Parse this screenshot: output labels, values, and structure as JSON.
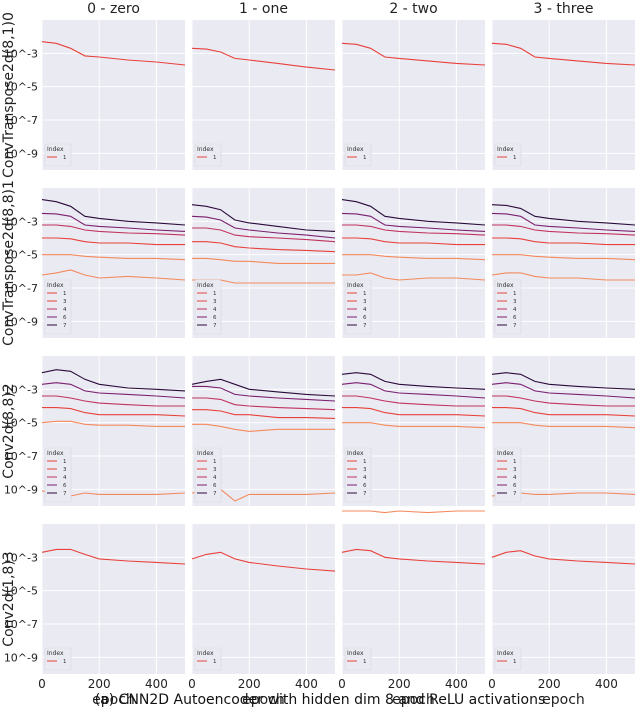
{
  "caption": "(a) CNN2D Autoencoder with hidden dim 8 and ReLU activations",
  "columns": [
    "0 - zero",
    "1 - one",
    "2 - two",
    "3 - three"
  ],
  "colors": {
    "panel_bg": "#eaeaf2",
    "grid": "#ffffff",
    "index_1": "#e8413b",
    "index_3": "#e8413b",
    "index_4": "#c0325f",
    "index_6": "#7a1e6e",
    "index_7": "#2a0a3a",
    "index_low": "#f4895c"
  },
  "chart_data": {
    "type": "line",
    "grid": true,
    "yscale": "log",
    "xlabel": "epoch",
    "xticks": [
      0,
      200,
      400
    ],
    "xlim": [
      0,
      500
    ],
    "ylim": [
      1e-10,
      0.1
    ],
    "yticks": [
      "10^-3",
      "10^-5",
      "10^-7",
      "10^-9"
    ],
    "legend_title": "Index",
    "legend_location": "lower-left",
    "rows": [
      {
        "ylabel": "ConvTranspose2d(8,1)0",
        "legend_entries": [
          "1"
        ],
        "series": [
          {
            "name": "1",
            "color": "index_1",
            "x": [
              0,
              50,
              100,
              150,
              200,
              300,
              400,
              500
            ],
            "y_by_column": [
              [
                0.005,
                0.004,
                0.002,
                0.0007,
                0.0006,
                0.0004,
                0.0003,
                0.0002
              ],
              [
                0.002,
                0.0018,
                0.0012,
                0.0005,
                0.0004,
                0.00025,
                0.00015,
                0.0001
              ],
              [
                0.004,
                0.0035,
                0.002,
                0.0006,
                0.0005,
                0.00035,
                0.00025,
                0.0002
              ],
              [
                0.004,
                0.0035,
                0.002,
                0.0006,
                0.0005,
                0.00035,
                0.00025,
                0.0002
              ]
            ]
          }
        ]
      },
      {
        "ylabel": "ConvTranspose2d(8,8)1",
        "legend_entries": [
          "1",
          "3",
          "4",
          "6",
          "7"
        ],
        "series": [
          {
            "name": "7",
            "color": "index_7",
            "x": [
              0,
              50,
              100,
              150,
              200,
              300,
              400,
              500
            ],
            "y_by_column": [
              [
                0.02,
                0.015,
                0.008,
                0.002,
                0.0015,
                0.001,
                0.0008,
                0.0006
              ],
              [
                0.01,
                0.008,
                0.005,
                0.0012,
                0.0008,
                0.0005,
                0.0003,
                0.00025
              ],
              [
                0.02,
                0.015,
                0.008,
                0.002,
                0.0015,
                0.001,
                0.0008,
                0.0006
              ],
              [
                0.01,
                0.009,
                0.006,
                0.002,
                0.0015,
                0.001,
                0.0008,
                0.0006
              ]
            ]
          },
          {
            "name": "6",
            "color": "index_6",
            "x": [
              0,
              50,
              100,
              150,
              200,
              300,
              400,
              500
            ],
            "y_by_column": [
              [
                0.003,
                0.0028,
                0.002,
                0.0006,
                0.0005,
                0.0004,
                0.0003,
                0.00025
              ],
              [
                0.002,
                0.0018,
                0.0012,
                0.0004,
                0.0003,
                0.0002,
                0.00015,
                0.0001
              ],
              [
                0.003,
                0.0028,
                0.002,
                0.0006,
                0.0005,
                0.0004,
                0.0003,
                0.00025
              ],
              [
                0.003,
                0.0028,
                0.002,
                0.0006,
                0.0005,
                0.0004,
                0.0003,
                0.00025
              ]
            ]
          },
          {
            "name": "4",
            "color": "index_4",
            "x": [
              0,
              50,
              100,
              150,
              200,
              300,
              400,
              500
            ],
            "y_by_column": [
              [
                0.0006,
                0.0006,
                0.0005,
                0.0003,
                0.00025,
                0.0002,
                0.00018,
                0.00015
              ],
              [
                0.0004,
                0.0004,
                0.0003,
                0.00015,
                0.00012,
                0.0001,
                8e-05,
                6e-05
              ],
              [
                0.0006,
                0.0006,
                0.0005,
                0.0003,
                0.00025,
                0.0002,
                0.00018,
                0.00015
              ],
              [
                0.0006,
                0.0006,
                0.0005,
                0.0003,
                0.00025,
                0.0002,
                0.00018,
                0.00015
              ]
            ]
          },
          {
            "name": "3",
            "color": "index_3",
            "x": [
              0,
              50,
              100,
              150,
              200,
              300,
              400,
              500
            ],
            "y_by_column": [
              [
                0.0001,
                0.0001,
                9e-05,
                6e-05,
                5e-05,
                5e-05,
                4e-05,
                4e-05
              ],
              [
                6e-05,
                6e-05,
                5e-05,
                3e-05,
                2.5e-05,
                2e-05,
                1.8e-05,
                1.5e-05
              ],
              [
                0.0001,
                0.0001,
                9e-05,
                6e-05,
                5e-05,
                5e-05,
                4e-05,
                4e-05
              ],
              [
                0.0001,
                0.0001,
                9e-05,
                6e-05,
                5e-05,
                5e-05,
                4e-05,
                4e-05
              ]
            ]
          },
          {
            "name": "1",
            "color": "index_low",
            "x": [
              0,
              50,
              100,
              150,
              200,
              300,
              400,
              500
            ],
            "y_by_column": [
              [
                1e-05,
                1e-05,
                1e-05,
                8e-06,
                7e-06,
                6e-06,
                6e-06,
                5e-06
              ],
              [
                6e-06,
                6e-06,
                5e-06,
                4e-06,
                4e-06,
                3e-06,
                3e-06,
                3e-06
              ],
              [
                1e-05,
                1e-05,
                1e-05,
                8e-06,
                7e-06,
                6e-06,
                6e-06,
                5e-06
              ],
              [
                1e-05,
                1e-05,
                1e-05,
                8e-06,
                7e-06,
                6e-06,
                6e-06,
                5e-06
              ]
            ]
          },
          {
            "name": "low",
            "color": "index_low",
            "x": [
              0,
              50,
              100,
              150,
              200,
              300,
              400,
              500
            ],
            "y_by_column": [
              [
                6e-07,
                8e-07,
                1.2e-06,
                6e-07,
                4e-07,
                5e-07,
                4e-07,
                3e-07
              ],
              [
                3e-07,
                3e-07,
                3e-07,
                2e-07,
                2e-07,
                2e-07,
                2e-07,
                2e-07
              ],
              [
                6e-07,
                6e-07,
                8e-07,
                4e-07,
                3e-07,
                4e-07,
                4e-07,
                3e-07
              ],
              [
                6e-07,
                8e-07,
                8e-07,
                5e-07,
                4e-07,
                4e-07,
                3e-07,
                3e-07
              ]
            ]
          }
        ]
      },
      {
        "ylabel": "Conv2d(8,8)2",
        "legend_entries": [
          "1",
          "3",
          "4",
          "6",
          "7"
        ],
        "series": [
          {
            "name": "7",
            "color": "index_7",
            "x": [
              0,
              50,
              100,
              150,
              200,
              300,
              400,
              500
            ],
            "y_by_column": [
              [
                0.01,
                0.015,
                0.012,
                0.004,
                0.002,
                0.0012,
                0.001,
                0.0008
              ],
              [
                0.002,
                0.003,
                0.004,
                0.002,
                0.001,
                0.0007,
                0.0005,
                0.0004
              ],
              [
                0.008,
                0.01,
                0.008,
                0.003,
                0.002,
                0.0015,
                0.0012,
                0.001
              ],
              [
                0.008,
                0.01,
                0.008,
                0.003,
                0.002,
                0.0015,
                0.0012,
                0.001
              ]
            ]
          },
          {
            "name": "6",
            "color": "index_6",
            "x": [
              0,
              50,
              100,
              150,
              200,
              300,
              400,
              500
            ],
            "y_by_column": [
              [
                0.002,
                0.0025,
                0.002,
                0.0008,
                0.0006,
                0.0005,
                0.0004,
                0.0003
              ],
              [
                0.0015,
                0.0015,
                0.0012,
                0.0005,
                0.0004,
                0.0003,
                0.00025,
                0.0002
              ],
              [
                0.002,
                0.0025,
                0.002,
                0.0008,
                0.0006,
                0.0005,
                0.0004,
                0.0003
              ],
              [
                0.002,
                0.0025,
                0.002,
                0.0008,
                0.0006,
                0.0005,
                0.0004,
                0.0003
              ]
            ]
          },
          {
            "name": "4",
            "color": "index_4",
            "x": [
              0,
              50,
              100,
              150,
              200,
              300,
              400,
              500
            ],
            "y_by_column": [
              [
                0.0004,
                0.0004,
                0.0003,
                0.0002,
                0.00015,
                0.00012,
                0.0001,
                0.0001
              ],
              [
                0.0003,
                0.0003,
                0.00025,
                0.00012,
                0.0001,
                8e-05,
                7e-05,
                6e-05
              ],
              [
                0.0004,
                0.0004,
                0.0003,
                0.0002,
                0.00015,
                0.00012,
                0.0001,
                0.0001
              ],
              [
                0.0004,
                0.0004,
                0.0003,
                0.0002,
                0.00015,
                0.00012,
                0.0001,
                0.0001
              ]
            ]
          },
          {
            "name": "3",
            "color": "index_3",
            "x": [
              0,
              50,
              100,
              150,
              200,
              300,
              400,
              500
            ],
            "y_by_column": [
              [
                8e-05,
                8e-05,
                7e-05,
                4e-05,
                3e-05,
                3e-05,
                3e-05,
                2.5e-05
              ],
              [
                6e-05,
                6e-05,
                5e-05,
                3e-05,
                3e-05,
                2e-05,
                2e-05,
                1.8e-05
              ],
              [
                8e-05,
                8e-05,
                7e-05,
                4e-05,
                3e-05,
                3e-05,
                3e-05,
                2.5e-05
              ],
              [
                8e-05,
                8e-05,
                7e-05,
                4e-05,
                3e-05,
                3e-05,
                3e-05,
                2.5e-05
              ]
            ]
          },
          {
            "name": "1",
            "color": "index_low",
            "x": [
              0,
              50,
              100,
              150,
              200,
              300,
              400,
              500
            ],
            "y_by_column": [
              [
                1e-05,
                1.2e-05,
                1.2e-05,
                8e-06,
                7e-06,
                7e-06,
                6e-06,
                6e-06
              ],
              [
                8e-06,
                8e-06,
                6e-06,
                4e-06,
                3e-06,
                4e-06,
                4e-06,
                4e-06
              ],
              [
                1e-05,
                1e-05,
                1e-05,
                7e-06,
                6e-06,
                6e-06,
                6e-06,
                5e-06
              ],
              [
                1e-05,
                1e-05,
                1e-05,
                7e-06,
                6e-06,
                6e-06,
                6e-06,
                5e-06
              ]
            ]
          },
          {
            "name": "low",
            "color": "index_low",
            "x": [
              0,
              50,
              100,
              150,
              200,
              300,
              400,
              500
            ],
            "y_by_column": [
              [
                8e-10,
                6e-10,
                4e-10,
                6e-10,
                5e-10,
                5e-10,
                5e-10,
                6e-10
              ],
              [
                6e-10,
                8e-10,
                1e-09,
                2e-10,
                5e-10,
                5e-10,
                5e-10,
                6e-10
              ],
              [
                5e-11,
                5e-11,
                5e-11,
                4e-11,
                5e-11,
                4e-11,
                5e-11,
                5e-11
              ],
              [
                4e-10,
                5e-10,
                6e-10,
                5e-10,
                5e-10,
                6e-10,
                6e-10,
                5e-10
              ]
            ]
          }
        ]
      },
      {
        "ylabel": "Conv2d(1,8)3",
        "legend_entries": [
          "1"
        ],
        "series": [
          {
            "name": "1",
            "color": "index_1",
            "x": [
              0,
              50,
              100,
              150,
              200,
              300,
              400,
              500
            ],
            "y_by_column": [
              [
                0.002,
                0.003,
                0.003,
                0.0015,
                0.0008,
                0.0006,
                0.0005,
                0.0004
              ],
              [
                0.0008,
                0.0015,
                0.002,
                0.0008,
                0.0005,
                0.0003,
                0.0002,
                0.00015
              ],
              [
                0.002,
                0.003,
                0.0025,
                0.001,
                0.0008,
                0.0006,
                0.0005,
                0.0004
              ],
              [
                0.001,
                0.002,
                0.0025,
                0.0012,
                0.0008,
                0.0006,
                0.0005,
                0.0004
              ]
            ]
          }
        ]
      }
    ]
  }
}
